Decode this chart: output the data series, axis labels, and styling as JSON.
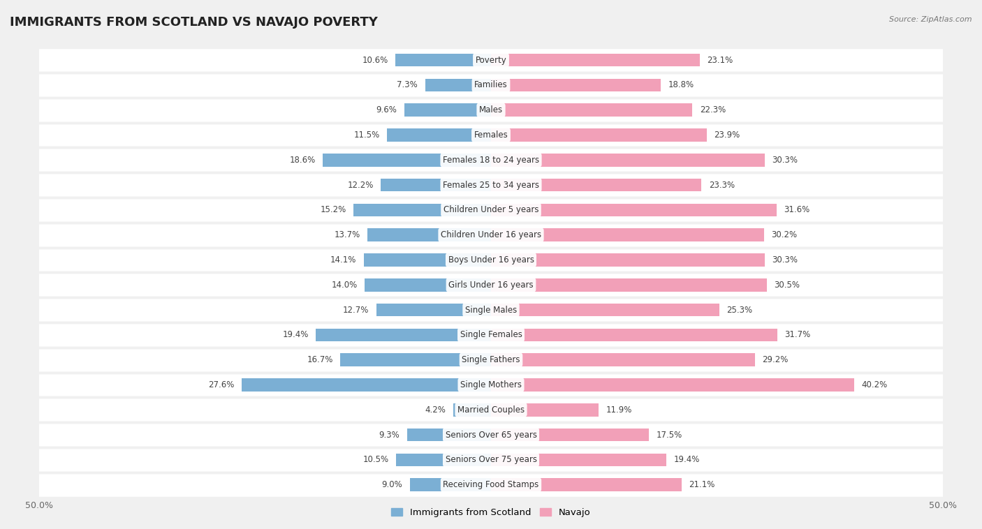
{
  "title": "IMMIGRANTS FROM SCOTLAND VS NAVAJO POVERTY",
  "source": "Source: ZipAtlas.com",
  "categories": [
    "Poverty",
    "Families",
    "Males",
    "Females",
    "Females 18 to 24 years",
    "Females 25 to 34 years",
    "Children Under 5 years",
    "Children Under 16 years",
    "Boys Under 16 years",
    "Girls Under 16 years",
    "Single Males",
    "Single Females",
    "Single Fathers",
    "Single Mothers",
    "Married Couples",
    "Seniors Over 65 years",
    "Seniors Over 75 years",
    "Receiving Food Stamps"
  ],
  "scotland_values": [
    10.6,
    7.3,
    9.6,
    11.5,
    18.6,
    12.2,
    15.2,
    13.7,
    14.1,
    14.0,
    12.7,
    19.4,
    16.7,
    27.6,
    4.2,
    9.3,
    10.5,
    9.0
  ],
  "navajo_values": [
    23.1,
    18.8,
    22.3,
    23.9,
    30.3,
    23.3,
    31.6,
    30.2,
    30.3,
    30.5,
    25.3,
    31.7,
    29.2,
    40.2,
    11.9,
    17.5,
    19.4,
    21.1
  ],
  "scotland_color": "#7bafd4",
  "navajo_color": "#f2a0b8",
  "scotland_label": "Immigrants from Scotland",
  "navajo_label": "Navajo",
  "axis_limit": 50.0,
  "background_color": "#f0f0f0",
  "bar_background_color": "#ffffff",
  "title_fontsize": 13,
  "label_fontsize": 8.5,
  "value_fontsize": 8.5
}
